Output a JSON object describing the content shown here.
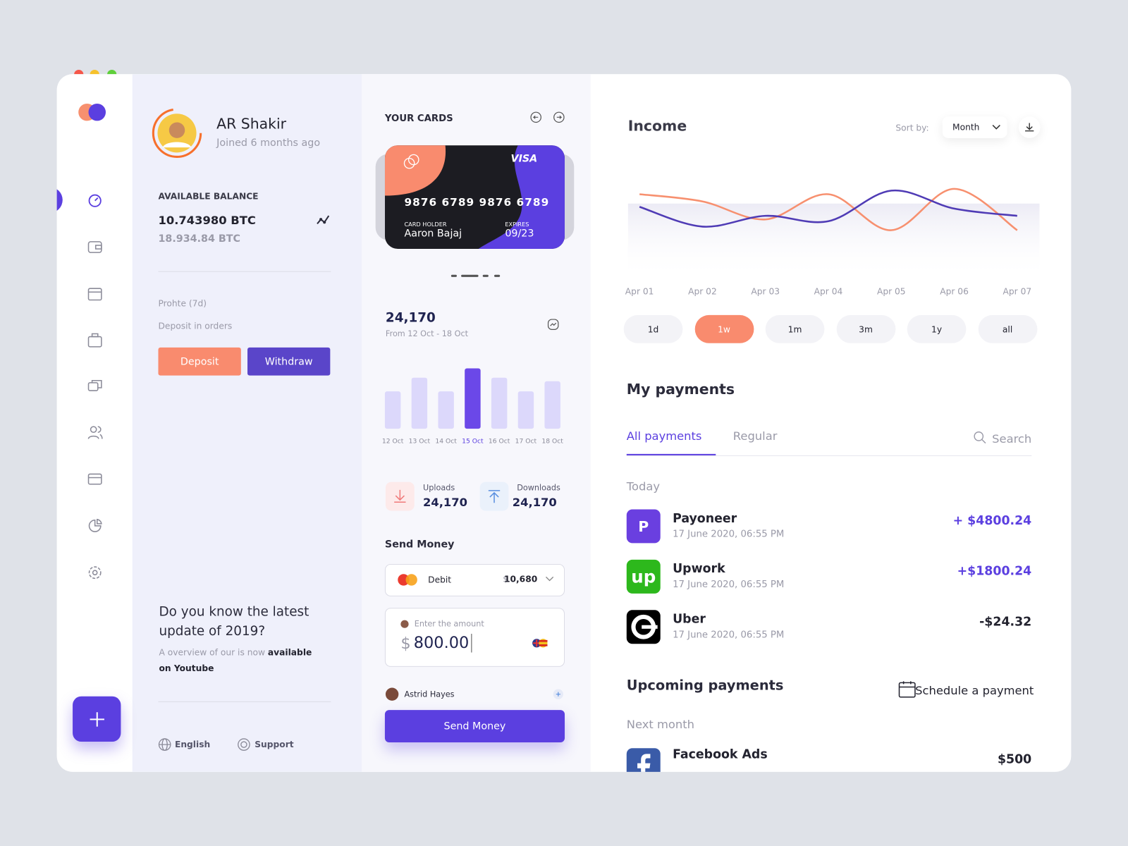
{
  "profile": {
    "name": "AR Shakir",
    "joined": "Joined 6 months ago"
  },
  "balance": {
    "label": "AVAILABLE BALANCE",
    "primary": "10.743980 BTC",
    "secondary": "18.934.84 BTC"
  },
  "info": {
    "profit": "Prohte (7d)",
    "deposit_orders": "Deposit in orders"
  },
  "buttons": {
    "deposit": "Deposit",
    "withdraw": "Withdraw"
  },
  "promo": {
    "title": "Do you know the latest update of 2019?",
    "text": "A overview of our is now ",
    "text_bold": "available on Youtube"
  },
  "footer": {
    "language": "English",
    "support": "Support"
  },
  "cards": {
    "title": "YOUR CARDS",
    "brand": "VISA",
    "number": "9876 6789 9876 6789",
    "holder_label": "CARD HOLDER",
    "holder": "Aaron Bajaj",
    "expires_label": "EXPIRES",
    "expires": "09/23"
  },
  "stats": {
    "total": "24,170",
    "range": "From 12 Oct - 18 Oct"
  },
  "bar_chart": {
    "type": "bar",
    "categories": [
      "12 Oct",
      "13 Oct",
      "14 Oct",
      "15 Oct",
      "16 Oct",
      "17 Oct",
      "18 Oct"
    ],
    "values": [
      52,
      71,
      52,
      84,
      71,
      52,
      66
    ],
    "colors": [
      "#dcd8fb",
      "#dcd8fb",
      "#dcd8fb",
      "#6b48e8",
      "#dcd8fb",
      "#dcd8fb",
      "#dcd8fb"
    ],
    "ylim": [
      0,
      90
    ]
  },
  "transfers": {
    "uploads_label": "Uploads",
    "uploads": "24,170",
    "downloads_label": "Downloads",
    "downloads": "24,170"
  },
  "send": {
    "title": "Send Money",
    "method": "Debit",
    "currency": "$",
    "balance": "10,680",
    "amount_placeholder": "Enter the amount",
    "amount_currency": "$",
    "amount": "800.00",
    "recipient": "Astrid Hayes",
    "button": "Send Money"
  },
  "income": {
    "title": "Income",
    "sort_label": "Sort by:",
    "sort_value": "Month",
    "chart": {
      "type": "line",
      "x": [
        "Apr 01",
        "Apr 02",
        "Apr 03",
        "Apr 04",
        "Apr 05",
        "Apr 06",
        "Apr 07"
      ],
      "series": [
        {
          "color": "#f7906f",
          "values": [
            88,
            80,
            60,
            88,
            48,
            94,
            48
          ]
        },
        {
          "color": "#4f3bb5",
          "values": [
            74,
            52,
            64,
            58,
            92,
            72,
            64
          ]
        }
      ],
      "ylim": [
        0,
        100
      ]
    },
    "ranges": [
      "1d",
      "1w",
      "1m",
      "3m",
      "1y",
      "all"
    ],
    "active_range": 1
  },
  "payments": {
    "title": "My payments",
    "tabs": [
      "All payments",
      "Regular"
    ],
    "search": "Search",
    "group": "Today",
    "items": [
      {
        "badge": "P",
        "name": "Payoneer",
        "date": "17 June 2020, 06:55 PM",
        "amount": "+ $4800.24"
      },
      {
        "badge": "up",
        "name": "Upwork",
        "date": "17 June 2020, 06:55 PM",
        "amount": "+$1800.24"
      },
      {
        "name": "Uber",
        "date": "17 June 2020, 06:55 PM",
        "amount": "-$24.32"
      }
    ]
  },
  "upcoming": {
    "title": "Upcoming payments",
    "schedule": "Schedule a payment",
    "group": "Next month",
    "items": [
      {
        "name": "Facebook Ads",
        "amount": "$500"
      }
    ]
  }
}
